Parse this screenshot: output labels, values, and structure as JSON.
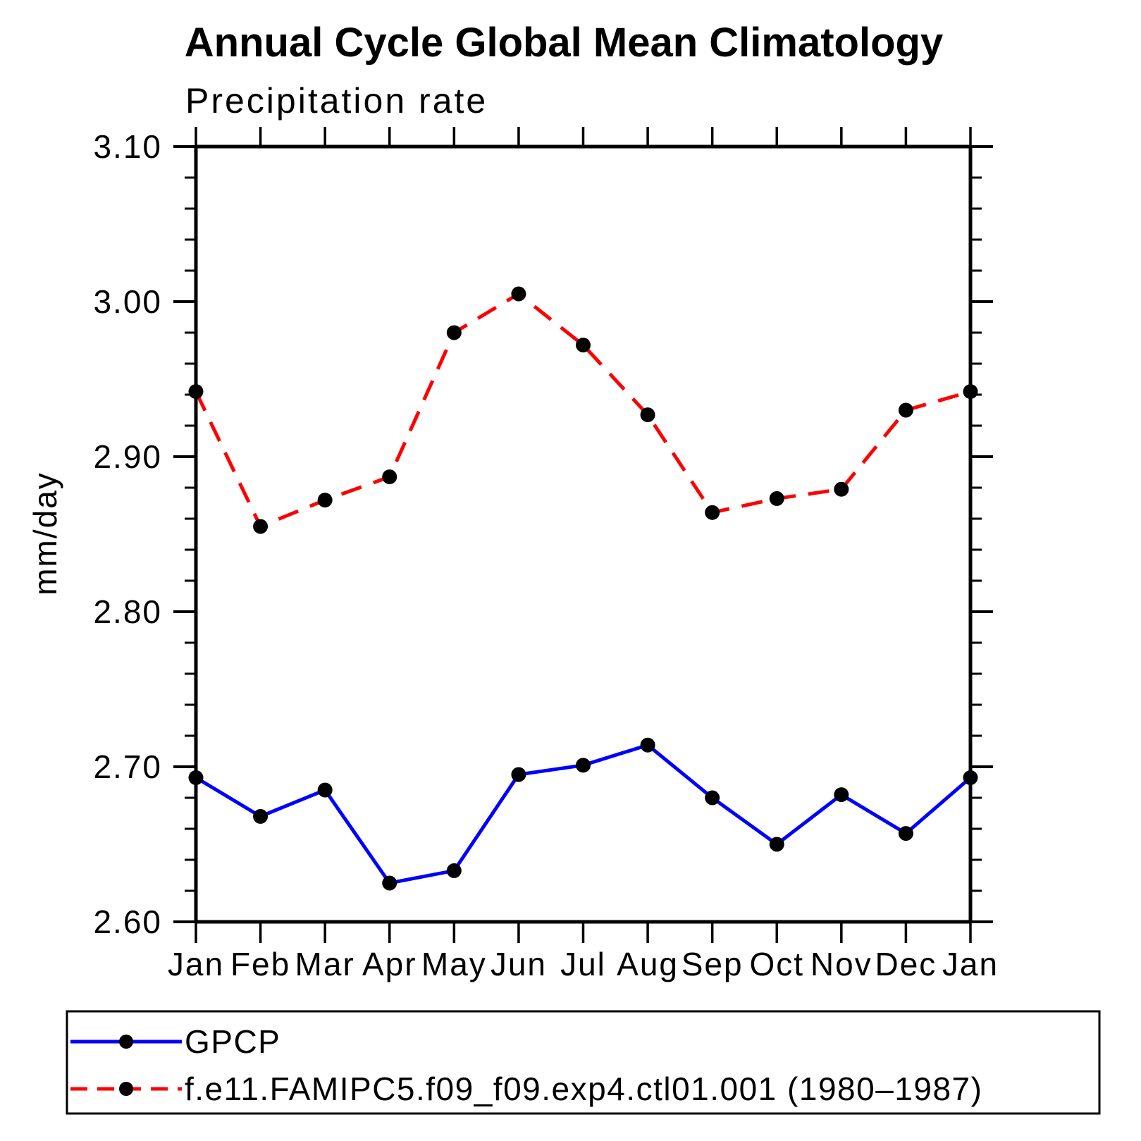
{
  "title": "Annual Cycle Global Mean Climatology",
  "subtitle": "Precipitation rate",
  "ylabel": "mm/day",
  "legend": {
    "items": [
      {
        "label": "GPCP",
        "color": "#0000ff",
        "dash": "solid"
      },
      {
        "label": "f.e11.FAMIPC5.f09_f09.exp4.ctl01.001 (1980–1987)",
        "color": "#ff0000",
        "dash": "dashed"
      }
    ],
    "marker_color": "#000000"
  },
  "chart_data": {
    "type": "line",
    "categories": [
      "Jan",
      "Feb",
      "Mar",
      "Apr",
      "May",
      "Jun",
      "Jul",
      "Aug",
      "Sep",
      "Oct",
      "Nov",
      "Dec",
      "Jan"
    ],
    "y_tick_labels": [
      "3.10",
      "3.00",
      "2.90",
      "2.80",
      "2.70",
      "2.60"
    ],
    "ylim": [
      2.6,
      3.1
    ],
    "y_major_step": 0.1,
    "y_minor_step": 0.02,
    "grid": false,
    "legend_position": "bottom",
    "marker": "filled-circle",
    "marker_color": "#000000",
    "series": [
      {
        "name": "GPCP",
        "color": "#0000ff",
        "style": "solid",
        "values": [
          2.693,
          2.668,
          2.685,
          2.625,
          2.633,
          2.695,
          2.701,
          2.714,
          2.68,
          2.65,
          2.682,
          2.657,
          2.693
        ]
      },
      {
        "name": "f.e11.FAMIPC5.f09_f09.exp4.ctl01.001 (1980–1987)",
        "color": "#ff0000",
        "style": "dashed",
        "values": [
          2.942,
          2.855,
          2.872,
          2.887,
          2.98,
          3.005,
          2.972,
          2.927,
          2.864,
          2.873,
          2.879,
          2.93,
          2.942
        ]
      }
    ]
  }
}
